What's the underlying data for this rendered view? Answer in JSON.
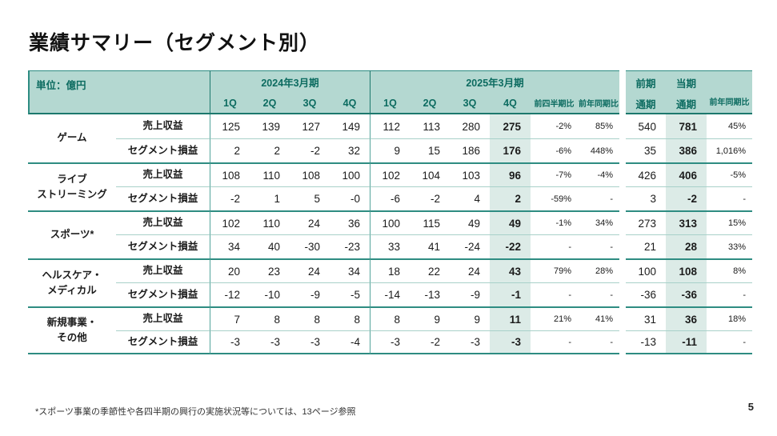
{
  "page": {
    "title": "業績サマリー（セグメント別）",
    "footnote": "*スポーツ事業の季節性や各四半期の興行の実施状況等については、13ページ参照",
    "page_number": "5"
  },
  "colors": {
    "header_bg": "#b4d8d1",
    "header_text": "#0c6b60",
    "highlight_bg": "#dcebe7",
    "separator_teal": "#2e8c82"
  },
  "table": {
    "unit_label": "単位：億円",
    "groups": {
      "fy2024": "2024年3月期",
      "fy2025": "2025年3月期",
      "prev_label": "前期",
      "curr_label": "当期",
      "full_year_label": "通期"
    },
    "col_headers": {
      "q": [
        "1Q",
        "2Q",
        "3Q",
        "4Q"
      ],
      "qoq_label": "前四半期比",
      "yoy_label": "前年同期比"
    },
    "segments": [
      {
        "name_lines": [
          "ゲーム"
        ],
        "rows": [
          {
            "metric": "売上収益",
            "fy2024": [
              "125",
              "139",
              "127",
              "149"
            ],
            "fy2025": [
              "112",
              "113",
              "280",
              "275"
            ],
            "qoq": "-2%",
            "yoy": "85%",
            "prev_full": "540",
            "curr_full": "781",
            "yoy_full": "45%"
          },
          {
            "metric": "セグメント損益",
            "fy2024": [
              "2",
              "2",
              "-2",
              "32"
            ],
            "fy2025": [
              "9",
              "15",
              "186",
              "176"
            ],
            "qoq": "-6%",
            "yoy": "448%",
            "prev_full": "35",
            "curr_full": "386",
            "yoy_full": "1,016%"
          }
        ]
      },
      {
        "name_lines": [
          "ライブ",
          "ストリーミング"
        ],
        "rows": [
          {
            "metric": "売上収益",
            "fy2024": [
              "108",
              "110",
              "108",
              "100"
            ],
            "fy2025": [
              "102",
              "104",
              "103",
              "96"
            ],
            "qoq": "-7%",
            "yoy": "-4%",
            "prev_full": "426",
            "curr_full": "406",
            "yoy_full": "-5%"
          },
          {
            "metric": "セグメント損益",
            "fy2024": [
              "-2",
              "1",
              "5",
              "-0"
            ],
            "fy2025": [
              "-6",
              "-2",
              "4",
              "2"
            ],
            "qoq": "-59%",
            "yoy": "-",
            "prev_full": "3",
            "curr_full": "-2",
            "yoy_full": "-"
          }
        ]
      },
      {
        "name_lines": [
          "スポーツ*"
        ],
        "rows": [
          {
            "metric": "売上収益",
            "fy2024": [
              "102",
              "110",
              "24",
              "36"
            ],
            "fy2025": [
              "100",
              "115",
              "49",
              "49"
            ],
            "qoq": "-1%",
            "yoy": "34%",
            "prev_full": "273",
            "curr_full": "313",
            "yoy_full": "15%"
          },
          {
            "metric": "セグメント損益",
            "fy2024": [
              "34",
              "40",
              "-30",
              "-23"
            ],
            "fy2025": [
              "33",
              "41",
              "-24",
              "-22"
            ],
            "qoq": "-",
            "yoy": "-",
            "prev_full": "21",
            "curr_full": "28",
            "yoy_full": "33%"
          }
        ]
      },
      {
        "name_lines": [
          "ヘルスケア・",
          "メディカル"
        ],
        "rows": [
          {
            "metric": "売上収益",
            "fy2024": [
              "20",
              "23",
              "24",
              "34"
            ],
            "fy2025": [
              "18",
              "22",
              "24",
              "43"
            ],
            "qoq": "79%",
            "yoy": "28%",
            "prev_full": "100",
            "curr_full": "108",
            "yoy_full": "8%"
          },
          {
            "metric": "セグメント損益",
            "fy2024": [
              "-12",
              "-10",
              "-9",
              "-5"
            ],
            "fy2025": [
              "-14",
              "-13",
              "-9",
              "-1"
            ],
            "qoq": "-",
            "yoy": "-",
            "prev_full": "-36",
            "curr_full": "-36",
            "yoy_full": "-"
          }
        ]
      },
      {
        "name_lines": [
          "新規事業・",
          "その他"
        ],
        "rows": [
          {
            "metric": "売上収益",
            "fy2024": [
              "7",
              "8",
              "8",
              "8"
            ],
            "fy2025": [
              "8",
              "9",
              "9",
              "11"
            ],
            "qoq": "21%",
            "yoy": "41%",
            "prev_full": "31",
            "curr_full": "36",
            "yoy_full": "18%"
          },
          {
            "metric": "セグメント損益",
            "fy2024": [
              "-3",
              "-3",
              "-3",
              "-4"
            ],
            "fy2025": [
              "-3",
              "-2",
              "-3",
              "-3"
            ],
            "qoq": "-",
            "yoy": "-",
            "prev_full": "-13",
            "curr_full": "-11",
            "yoy_full": "-"
          }
        ]
      }
    ]
  }
}
